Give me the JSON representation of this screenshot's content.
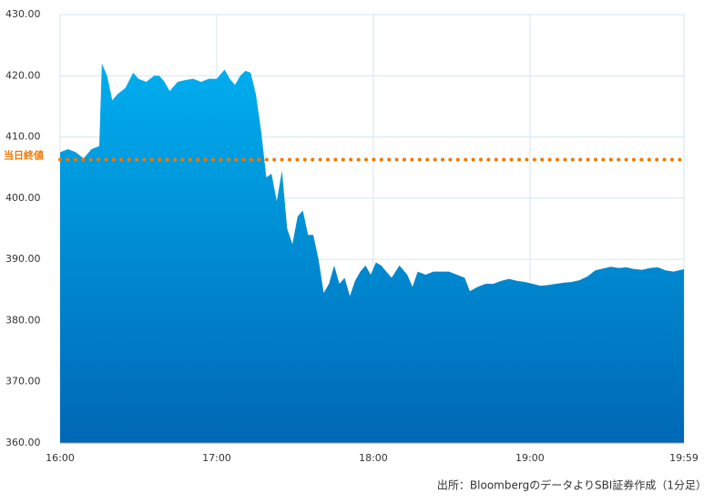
{
  "chart_data": {
    "type": "area",
    "x": [
      "16:00",
      "16:03",
      "16:06",
      "16:09",
      "16:12",
      "16:15",
      "16:16",
      "16:18",
      "16:20",
      "16:22",
      "16:25",
      "16:28",
      "16:30",
      "16:33",
      "16:36",
      "16:38",
      "16:40",
      "16:42",
      "16:45",
      "16:48",
      "16:51",
      "16:54",
      "16:57",
      "17:00",
      "17:03",
      "17:05",
      "17:07",
      "17:09",
      "17:11",
      "17:13",
      "17:15",
      "17:17",
      "17:19",
      "17:21",
      "17:23",
      "17:25",
      "17:27",
      "17:29",
      "17:31",
      "17:33",
      "17:35",
      "17:37",
      "17:39",
      "17:41",
      "17:43",
      "17:45",
      "17:47",
      "17:49",
      "17:51",
      "17:53",
      "17:55",
      "17:57",
      "17:59",
      "18:01",
      "18:03",
      "18:05",
      "18:07",
      "18:10",
      "18:13",
      "18:15",
      "18:17",
      "18:20",
      "18:23",
      "18:26",
      "18:29",
      "18:32",
      "18:35",
      "18:37",
      "18:40",
      "18:43",
      "18:46",
      "18:49",
      "18:52",
      "18:55",
      "18:58",
      "19:01",
      "19:04",
      "19:07",
      "19:10",
      "19:13",
      "19:16",
      "19:19",
      "19:22",
      "19:25",
      "19:28",
      "19:31",
      "19:34",
      "19:37",
      "19:40",
      "19:43",
      "19:46",
      "19:49",
      "19:52",
      "19:55",
      "19:57",
      "19:59"
    ],
    "series": [
      {
        "color": "#00aeef",
        "values": [
          407.5,
          408,
          407.5,
          406.5,
          408,
          408.5,
          422,
          420,
          416,
          417,
          418,
          420.5,
          419.5,
          419,
          420,
          420,
          419,
          417.5,
          419,
          419.3,
          419.5,
          419,
          419.5,
          419.5,
          421,
          419.5,
          418.5,
          420,
          420.8,
          420.5,
          417,
          411,
          403.4,
          404,
          399.5,
          404.5,
          395,
          392.5,
          397,
          398,
          394,
          394,
          390,
          384.5,
          386,
          389,
          386,
          387,
          384,
          386.5,
          388,
          389,
          387.5,
          389.5,
          389,
          388,
          387,
          389,
          387.5,
          385.5,
          388,
          387.5,
          388,
          388,
          388,
          387.5,
          387,
          384.8,
          385.5,
          386,
          386,
          386.5,
          386.8,
          386.5,
          386.3,
          386,
          385.7,
          385.8,
          386,
          386.2,
          386.3,
          386.6,
          387.2,
          388.2,
          388.5,
          388.8,
          388.6,
          388.7,
          388.4,
          388.3,
          388.6,
          388.7,
          388.2,
          388,
          388.2,
          388.4
        ]
      }
    ],
    "xlim": [
      "16:00",
      "19:59"
    ],
    "xticks": [
      "16:00",
      "17:00",
      "18:00",
      "19:00",
      "19:59"
    ],
    "ylim": [
      360,
      430
    ],
    "yticks": [
      {
        "value": 360,
        "label": "360.00"
      },
      {
        "value": 370,
        "label": "370.00"
      },
      {
        "value": 380,
        "label": "380.00"
      },
      {
        "value": 390,
        "label": "390.00"
      },
      {
        "value": 400,
        "label": "400.00"
      },
      {
        "value": 410,
        "label": "410.00"
      },
      {
        "value": 420,
        "label": "420.00"
      },
      {
        "value": 430,
        "label": "430.00"
      }
    ],
    "grid": true,
    "reference_line": {
      "label": "当日終値",
      "value": 406.3,
      "color": "#f07800"
    },
    "source": "出所：BloombergのデータよりSBI証券作成（1分足）"
  }
}
